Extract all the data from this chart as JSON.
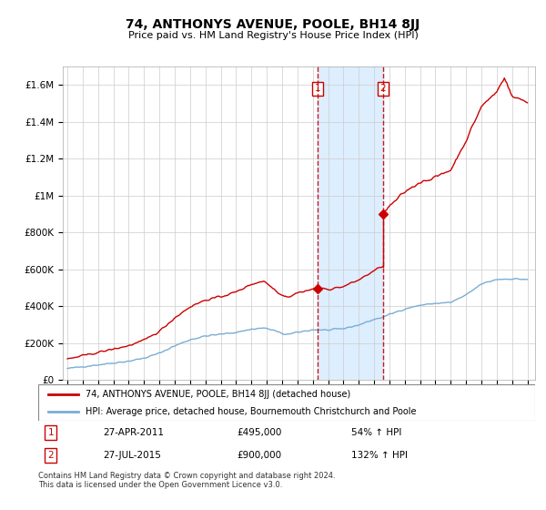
{
  "title": "74, ANTHONYS AVENUE, POOLE, BH14 8JJ",
  "subtitle": "Price paid vs. HM Land Registry's House Price Index (HPI)",
  "ylim": [
    0,
    1700000
  ],
  "yticks": [
    0,
    200000,
    400000,
    600000,
    800000,
    1000000,
    1200000,
    1400000,
    1600000
  ],
  "ytick_labels": [
    "£0",
    "£200K",
    "£400K",
    "£600K",
    "£800K",
    "£1M",
    "£1.2M",
    "£1.4M",
    "£1.6M"
  ],
  "legend_line1": "74, ANTHONYS AVENUE, POOLE, BH14 8JJ (detached house)",
  "legend_line2": "HPI: Average price, detached house, Bournemouth Christchurch and Poole",
  "note": "Contains HM Land Registry data © Crown copyright and database right 2024.\nThis data is licensed under the Open Government Licence v3.0.",
  "table": [
    {
      "num": "1",
      "date": "27-APR-2011",
      "price": "£495,000",
      "hpi": "54% ↑ HPI",
      "x": 2011.32
    },
    {
      "num": "2",
      "date": "27-JUL-2015",
      "price": "£900,000",
      "hpi": "132% ↑ HPI",
      "x": 2015.57
    }
  ],
  "sale_prices": [
    495000,
    900000
  ],
  "sale_years": [
    2011.32,
    2015.57
  ],
  "red_color": "#cc0000",
  "blue_color": "#7aadd4",
  "shade_color": "#ddeeff",
  "vline_color": "#cc0000",
  "background_color": "#ffffff",
  "grid_color": "#cccccc"
}
